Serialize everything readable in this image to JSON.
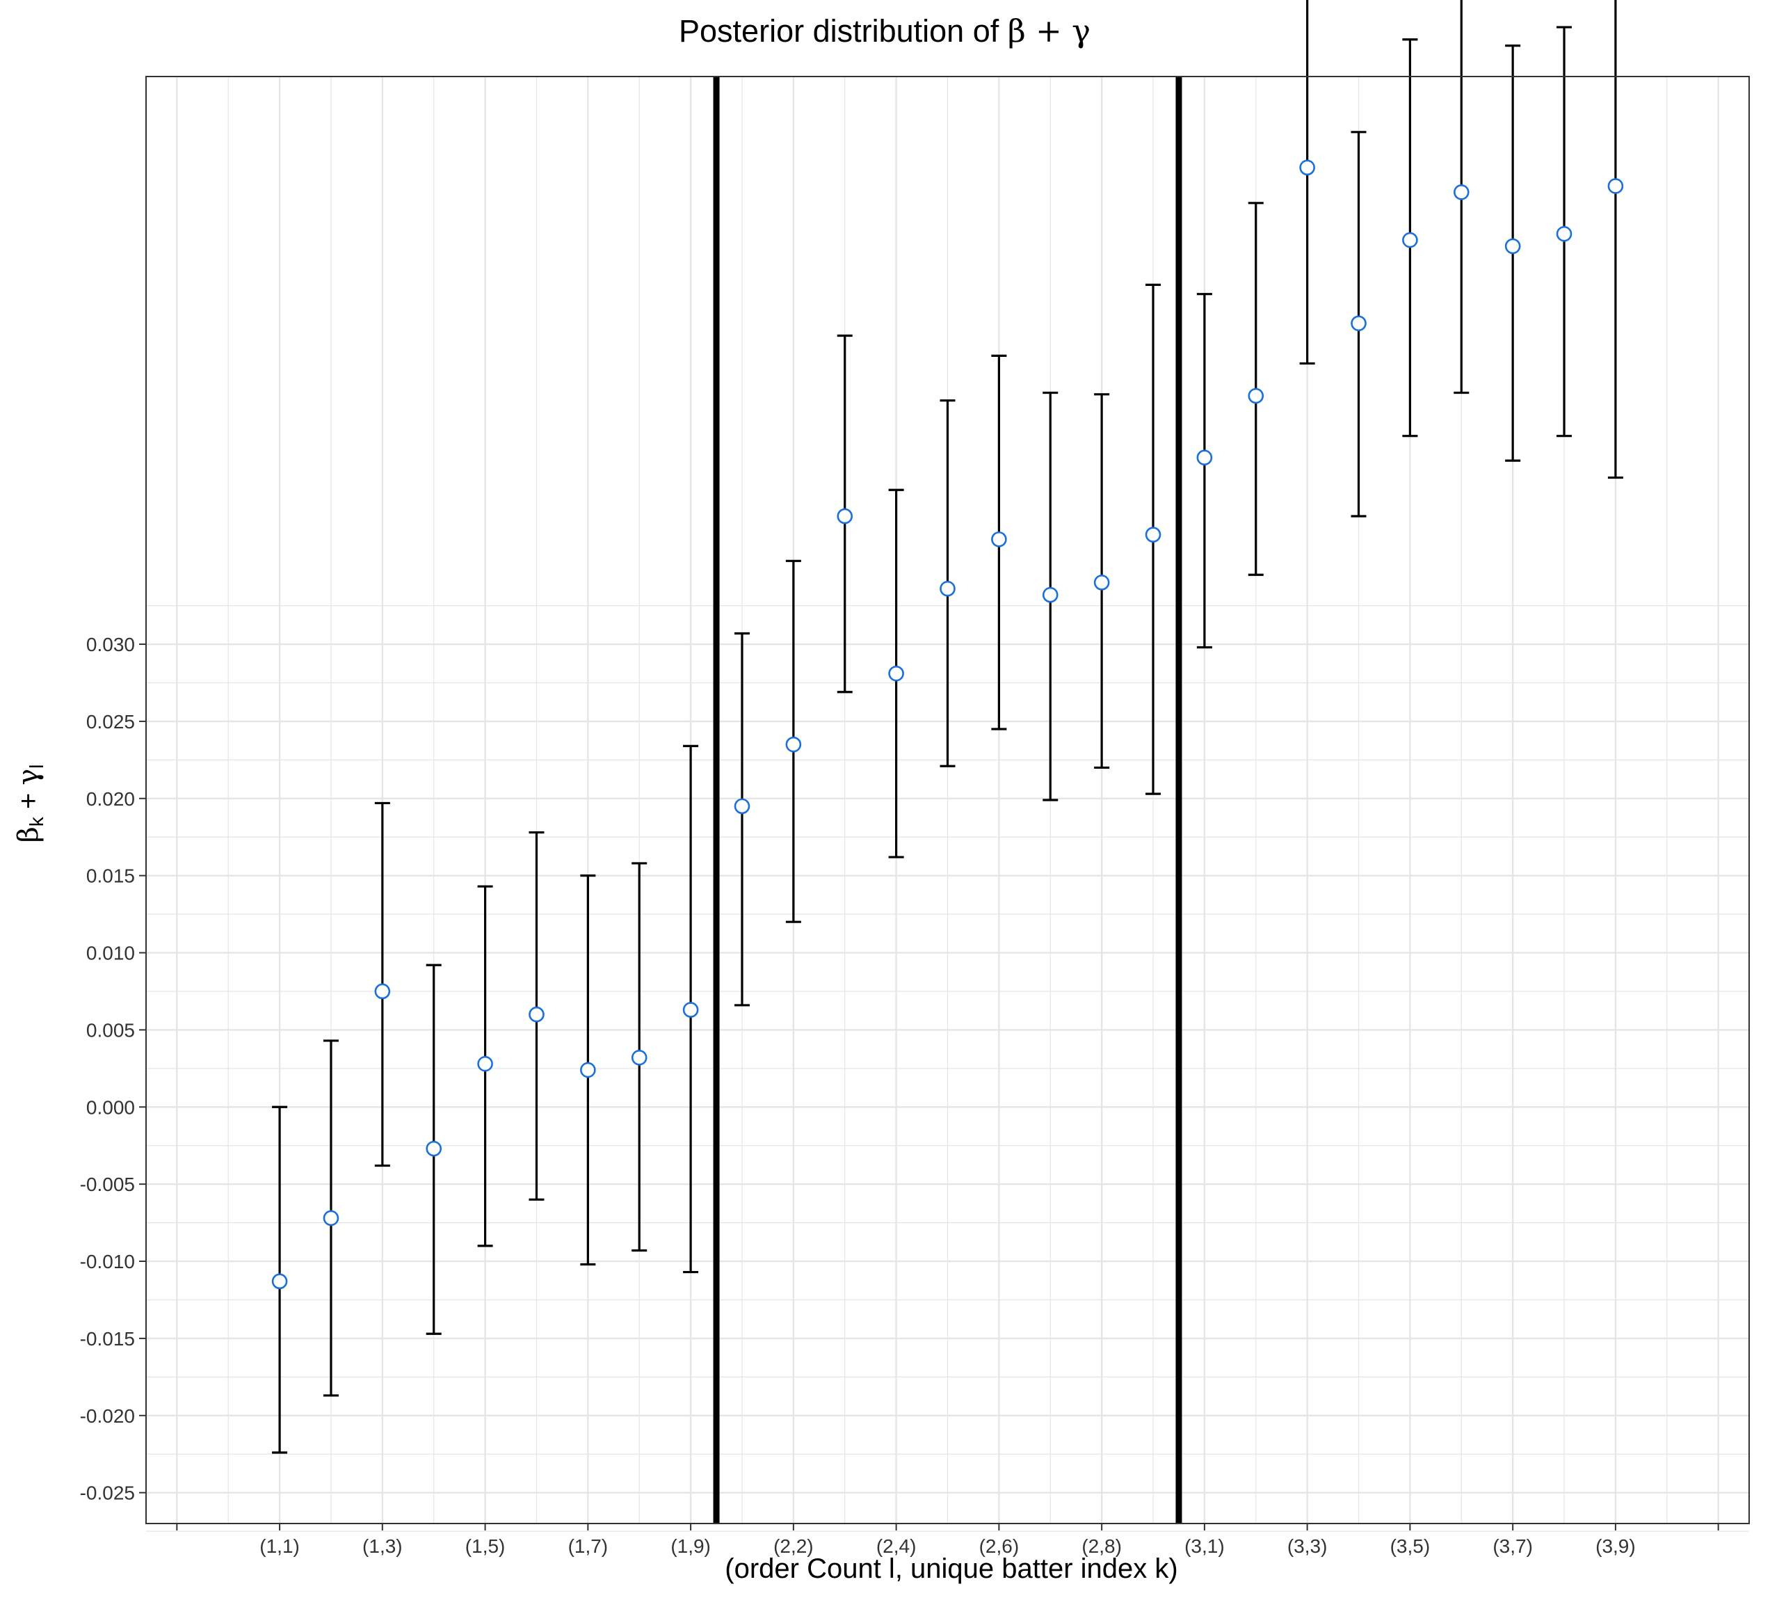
{
  "chart_data": {
    "type": "errorbar",
    "title_prefix": "Posterior distribution of ",
    "title_math": "β + γ",
    "xlabel": "(order Count l, unique batter index k)",
    "ylabel": {
      "beta": "β",
      "beta_sub": "k",
      "plus": " + ",
      "gamma": "γ",
      "gamma_sub": "l"
    },
    "ylim": [
      -0.027,
      0.0668
    ],
    "yticks": [
      "0.030",
      "0.025",
      "0.020",
      "0.015",
      "0.010",
      "0.005",
      "0.000",
      "-0.005",
      "-0.010",
      "-0.015",
      "-0.020",
      "-0.025"
    ],
    "xtick_labels": [
      "(1,1)",
      "(1,3)",
      "(1,5)",
      "(1,7)",
      "(1,9)",
      "(2,2)",
      "(2,4)",
      "(2,6)",
      "(2,8)",
      "(3,1)",
      "(3,3)",
      "(3,5)",
      "(3,7)",
      "(3,9)"
    ],
    "grid": true,
    "group_separators": [
      "(1,9)|(2,1)",
      "(2,9)|(3,1)"
    ],
    "colors": {
      "point_edge": "#1a6fdb",
      "point_fill": "#ffffff",
      "errorbar": "#000000",
      "separator": "#000000",
      "grid": "#e5e5e5"
    },
    "points": [
      {
        "x": "(1,1)",
        "mean": -0.0113,
        "lower": -0.0224,
        "upper": 0.0
      },
      {
        "x": "(1,2)",
        "mean": -0.0072,
        "lower": -0.0187,
        "upper": 0.0043
      },
      {
        "x": "(1,3)",
        "mean": 0.0075,
        "lower": -0.0038,
        "upper": 0.0197
      },
      {
        "x": "(1,4)",
        "mean": -0.0027,
        "lower": -0.0147,
        "upper": 0.0092
      },
      {
        "x": "(1,5)",
        "mean": 0.0028,
        "lower": -0.009,
        "upper": 0.0143
      },
      {
        "x": "(1,6)",
        "mean": 0.006,
        "lower": -0.006,
        "upper": 0.0178
      },
      {
        "x": "(1,7)",
        "mean": 0.0024,
        "lower": -0.0102,
        "upper": 0.015
      },
      {
        "x": "(1,8)",
        "mean": 0.0032,
        "lower": -0.0093,
        "upper": 0.0158
      },
      {
        "x": "(1,9)",
        "mean": 0.0063,
        "lower": -0.0107,
        "upper": 0.0234
      },
      {
        "x": "(2,1)",
        "mean": 0.0195,
        "lower": 0.0066,
        "upper": 0.0307
      },
      {
        "x": "(2,2)",
        "mean": 0.0235,
        "lower": 0.012,
        "upper": 0.0354
      },
      {
        "x": "(2,3)",
        "mean": 0.0383,
        "lower": 0.0269,
        "upper": 0.05
      },
      {
        "x": "(2,4)",
        "mean": 0.0281,
        "lower": 0.0162,
        "upper": 0.04
      },
      {
        "x": "(2,5)",
        "mean": 0.0336,
        "lower": 0.0221,
        "upper": 0.0458
      },
      {
        "x": "(2,6)",
        "mean": 0.0368,
        "lower": 0.0245,
        "upper": 0.0487
      },
      {
        "x": "(2,7)",
        "mean": 0.0332,
        "lower": 0.0199,
        "upper": 0.0463
      },
      {
        "x": "(2,8)",
        "mean": 0.034,
        "lower": 0.022,
        "upper": 0.0462
      },
      {
        "x": "(2,9)",
        "mean": 0.0371,
        "lower": 0.0203,
        "upper": 0.0533
      },
      {
        "x": "(3,1)",
        "mean": 0.0421,
        "lower": 0.0298,
        "upper": 0.0527
      },
      {
        "x": "(3,2)",
        "mean": 0.0461,
        "lower": 0.0345,
        "upper": 0.0586
      },
      {
        "x": "(3,3)",
        "mean": 0.0609,
        "lower": 0.0482,
        "upper": 0.0735
      },
      {
        "x": "(3,4)",
        "mean": 0.0508,
        "lower": 0.0383,
        "upper": 0.0632
      },
      {
        "x": "(3,5)",
        "mean": 0.0562,
        "lower": 0.0435,
        "upper": 0.0692
      },
      {
        "x": "(3,6)",
        "mean": 0.0593,
        "lower": 0.0463,
        "upper": 0.0724
      },
      {
        "x": "(3,7)",
        "mean": 0.0558,
        "lower": 0.0419,
        "upper": 0.0688
      },
      {
        "x": "(3,8)",
        "mean": 0.0566,
        "lower": 0.0435,
        "upper": 0.07
      },
      {
        "x": "(3,9)",
        "mean": 0.0597,
        "lower": 0.0408,
        "upper": 0.0777
      }
    ]
  }
}
